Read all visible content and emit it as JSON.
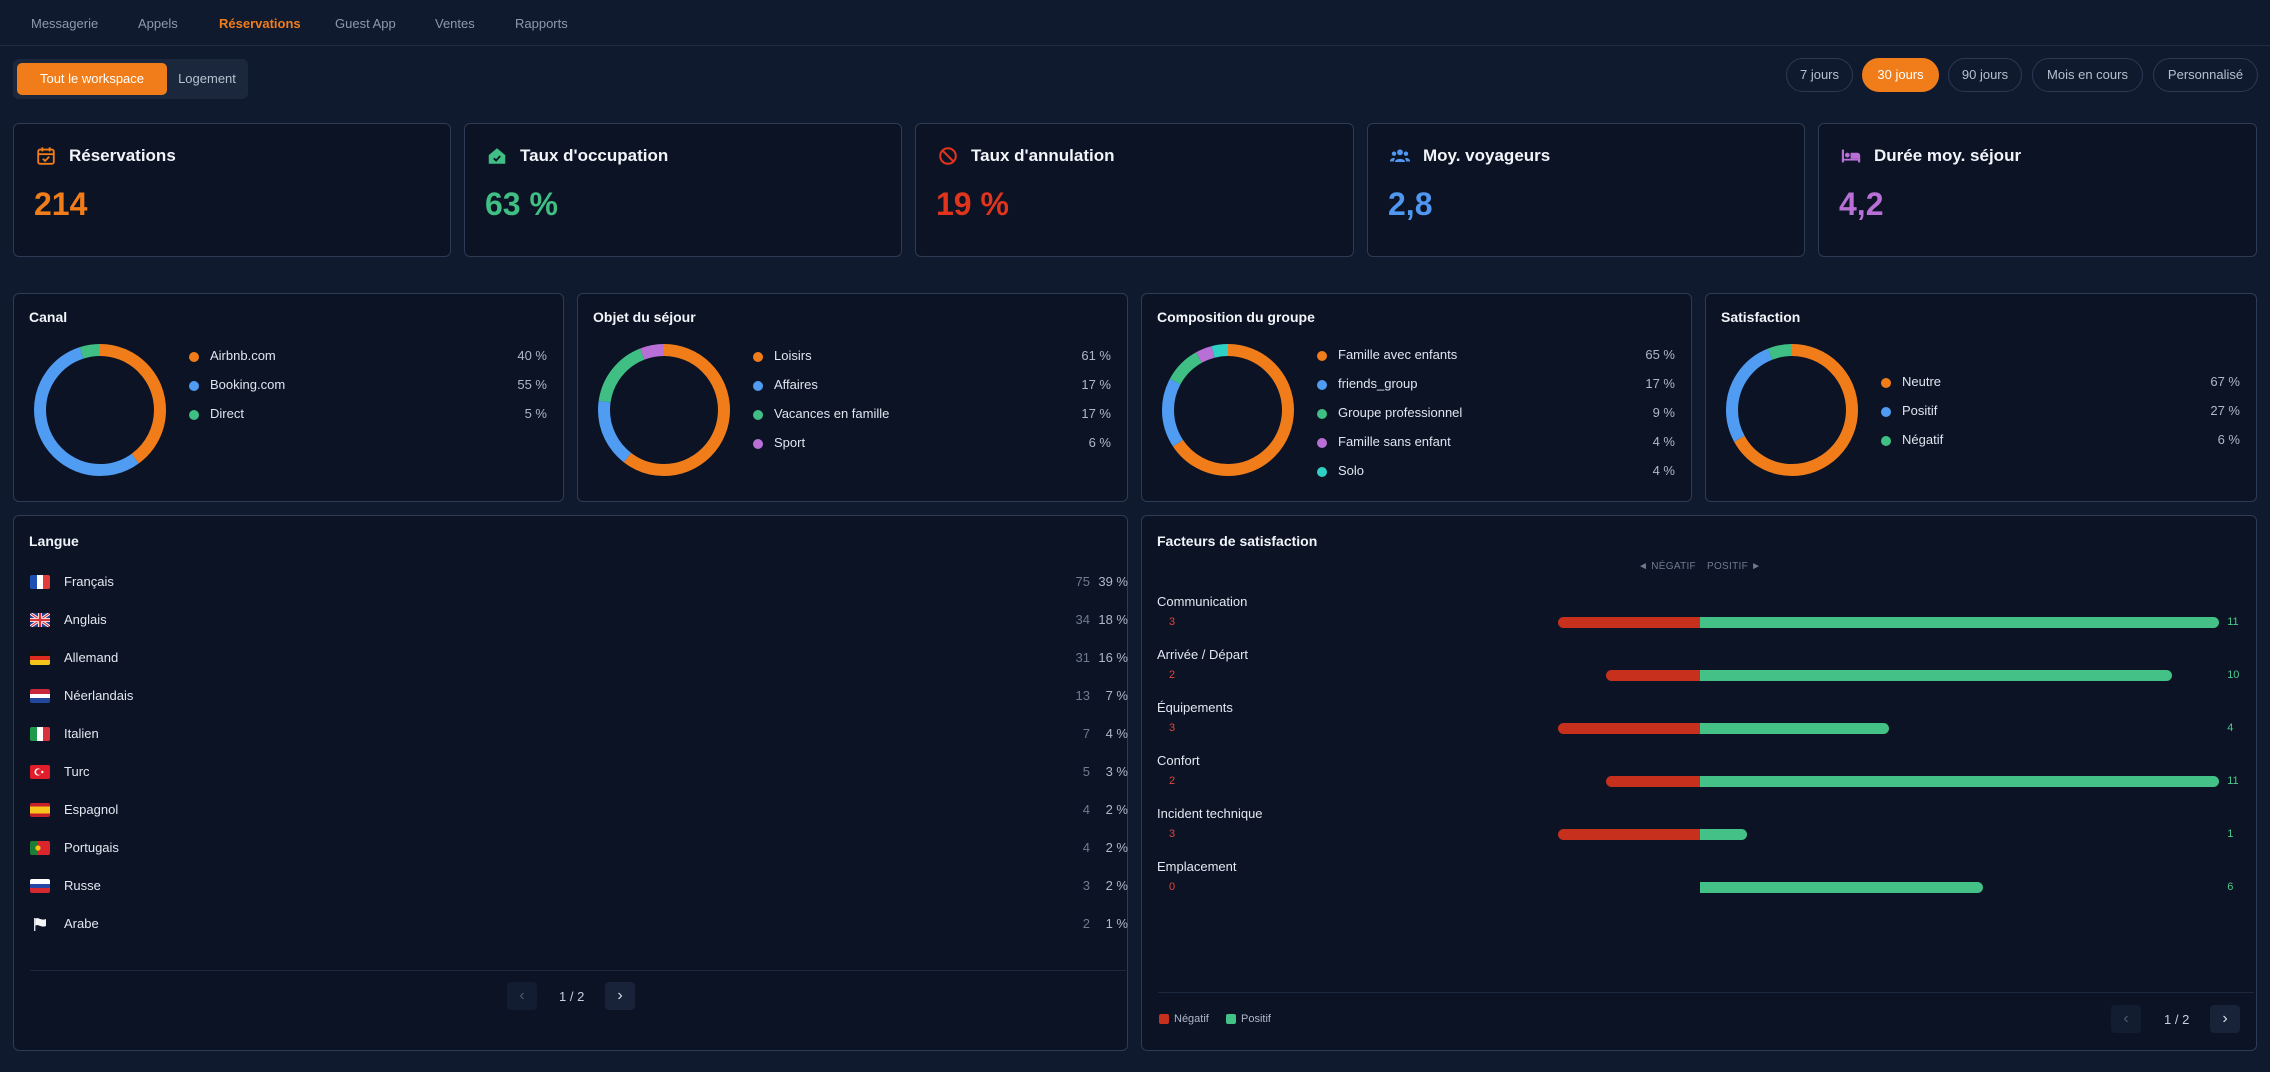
{
  "nav": {
    "items": [
      {
        "label": "Messagerie",
        "active": false
      },
      {
        "label": "Appels",
        "active": false
      },
      {
        "label": "Réservations",
        "active": true
      },
      {
        "label": "Guest App",
        "active": false
      },
      {
        "label": "Ventes",
        "active": false
      },
      {
        "label": "Rapports",
        "active": false
      }
    ]
  },
  "scope": {
    "workspace_label": "Tout le workspace",
    "property_label": "Logement",
    "selected": "workspace"
  },
  "periods": [
    {
      "label": "7 jours",
      "active": false
    },
    {
      "label": "30 jours",
      "active": true
    },
    {
      "label": "90 jours",
      "active": false
    },
    {
      "label": "Mois en cours",
      "active": false
    },
    {
      "label": "Personnalisé",
      "active": false
    }
  ],
  "kpis": [
    {
      "title": "Réservations",
      "value": "214",
      "color": "#f07d1a",
      "icon": "calendar-check-icon"
    },
    {
      "title": "Taux d'occupation",
      "value": "63 %",
      "color": "#3fbf84",
      "icon": "home-check-icon"
    },
    {
      "title": "Taux d'annulation",
      "value": "19 %",
      "color": "#e0341c",
      "icon": "ban-icon"
    },
    {
      "title": "Moy. voyageurs",
      "value": "2,8",
      "color": "#4f97f0",
      "icon": "users-icon"
    },
    {
      "title": "Durée moy. séjour",
      "value": "4,2",
      "color": "#b86fd6",
      "icon": "bed-icon"
    }
  ],
  "donuts": [
    {
      "title": "Canal",
      "items": [
        {
          "label": "Airbnb.com",
          "pct": 40,
          "pct_text": "40 %",
          "color": "#f07d1a"
        },
        {
          "label": "Booking.com",
          "pct": 55,
          "pct_text": "55 %",
          "color": "#4f9cf2"
        },
        {
          "label": "Direct",
          "pct": 5,
          "pct_text": "5 %",
          "color": "#3fbf84"
        }
      ]
    },
    {
      "title": "Objet du séjour",
      "items": [
        {
          "label": "Loisirs",
          "pct": 61,
          "pct_text": "61 %",
          "color": "#f07d1a"
        },
        {
          "label": "Affaires",
          "pct": 17,
          "pct_text": "17 %",
          "color": "#4f9cf2"
        },
        {
          "label": "Vacances en famille",
          "pct": 17,
          "pct_text": "17 %",
          "color": "#3fbf84"
        },
        {
          "label": "Sport",
          "pct": 6,
          "pct_text": "6 %",
          "color": "#b86fd6"
        }
      ]
    },
    {
      "title": "Composition du groupe",
      "items": [
        {
          "label": "Famille avec enfants",
          "pct": 65,
          "pct_text": "65 %",
          "color": "#f07d1a"
        },
        {
          "label": "friends_group",
          "pct": 17,
          "pct_text": "17 %",
          "color": "#4f9cf2"
        },
        {
          "label": "Groupe professionnel",
          "pct": 9,
          "pct_text": "9 %",
          "color": "#3fbf84"
        },
        {
          "label": "Famille sans enfant",
          "pct": 4,
          "pct_text": "4 %",
          "color": "#b86fd6"
        },
        {
          "label": "Solo",
          "pct": 4,
          "pct_text": "4 %",
          "color": "#2fd1c4"
        }
      ]
    },
    {
      "title": "Satisfaction",
      "items": [
        {
          "label": "Neutre",
          "pct": 67,
          "pct_text": "67 %",
          "color": "#f07d1a"
        },
        {
          "label": "Positif",
          "pct": 27,
          "pct_text": "27 %",
          "color": "#4f9cf2"
        },
        {
          "label": "Négatif",
          "pct": 6,
          "pct_text": "6 %",
          "color": "#3fbf84"
        }
      ]
    }
  ],
  "languages": {
    "title": "Langue",
    "rows": [
      {
        "name": "Français",
        "count": "75",
        "pct": "39 %",
        "flag": "france-flag-icon"
      },
      {
        "name": "Anglais",
        "count": "34",
        "pct": "18 %",
        "flag": "uk-flag-icon"
      },
      {
        "name": "Allemand",
        "count": "31",
        "pct": "16 %",
        "flag": "germany-flag-icon"
      },
      {
        "name": "Néerlandais",
        "count": "13",
        "pct": "7 %",
        "flag": "netherlands-flag-icon"
      },
      {
        "name": "Italien",
        "count": "7",
        "pct": "4 %",
        "flag": "italy-flag-icon"
      },
      {
        "name": "Turc",
        "count": "5",
        "pct": "3 %",
        "flag": "turkey-flag-icon"
      },
      {
        "name": "Espagnol",
        "count": "4",
        "pct": "2 %",
        "flag": "spain-flag-icon"
      },
      {
        "name": "Portugais",
        "count": "4",
        "pct": "2 %",
        "flag": "portugal-flag-icon"
      },
      {
        "name": "Russe",
        "count": "3",
        "pct": "2 %",
        "flag": "russia-flag-icon"
      },
      {
        "name": "Arabe",
        "count": "2",
        "pct": "1 %",
        "flag": "white-flag-icon"
      }
    ],
    "pager": "1 / 2"
  },
  "factors": {
    "title": "Facteurs de satisfaction",
    "neg_axis": "◄ NÉGATIF",
    "pos_axis": "POSITIF ►",
    "max": 11,
    "rows": [
      {
        "label": "Communication",
        "neg": 3,
        "pos": 11
      },
      {
        "label": "Arrivée / Départ",
        "neg": 2,
        "pos": 10
      },
      {
        "label": "Équipements",
        "neg": 3,
        "pos": 4
      },
      {
        "label": "Confort",
        "neg": 2,
        "pos": 11
      },
      {
        "label": "Incident technique",
        "neg": 3,
        "pos": 1
      },
      {
        "label": "Emplacement",
        "neg": 0,
        "pos": 6
      }
    ],
    "legend_neg": "Négatif",
    "legend_pos": "Positif",
    "pager": "1 / 2"
  },
  "colors": {
    "accent": "#f07d1a",
    "negative": "#c7301c",
    "positive": "#44c186"
  }
}
